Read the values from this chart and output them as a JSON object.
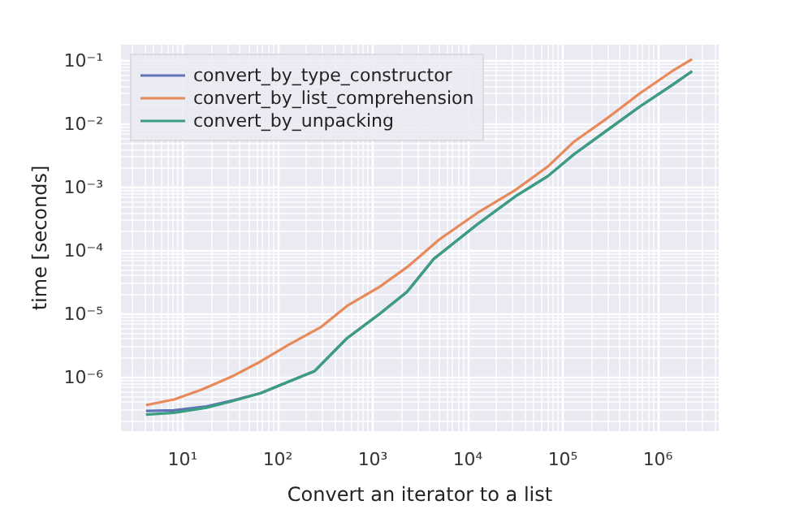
{
  "chart_data": {
    "type": "line",
    "xlabel": "Convert an iterator to a list",
    "ylabel": "time [seconds]",
    "log": "xy",
    "grid": true,
    "legend": "top left",
    "marker": "none",
    "line_style": "solid",
    "xlim": [
      2.24,
      4370000
    ],
    "ylim": [
      1.41e-07,
      0.182
    ],
    "xticks": [
      {
        "value": 10,
        "label": "10¹"
      },
      {
        "value": 100,
        "label": "10²"
      },
      {
        "value": 1000,
        "label": "10³"
      },
      {
        "value": 10000,
        "label": "10⁴"
      },
      {
        "value": 100000,
        "label": "10⁵"
      },
      {
        "value": 1000000,
        "label": "10⁶"
      }
    ],
    "yticks": [
      {
        "value": 1e-06,
        "label": "10⁻⁶"
      },
      {
        "value": 1e-05,
        "label": "10⁻⁵"
      },
      {
        "value": 0.0001,
        "label": "10⁻⁴"
      },
      {
        "value": 0.001,
        "label": "10⁻³"
      },
      {
        "value": 0.01,
        "label": "10⁻²"
      },
      {
        "value": 0.1,
        "label": "10⁻¹"
      }
    ],
    "series": [
      {
        "name": "convert_by_type_constructor",
        "color": "#5f74b8",
        "x": [
          4.1,
          8.1,
          17.8,
          34.7,
          66,
          129,
          245,
          537,
          1175,
          2290,
          4370,
          12600,
          31600,
          69200,
          132000,
          295000,
          646000,
          1410000,
          2290000
        ],
        "values": [
          2.95e-07,
          3e-07,
          3.47e-07,
          4.37e-07,
          5.62e-07,
          8.51e-07,
          1.26e-06,
          4.17e-06,
          1e-05,
          2.24e-05,
          7.41e-05,
          0.000263,
          0.000724,
          0.00151,
          0.00339,
          0.00813,
          0.0191,
          0.0417,
          0.0692
        ]
      },
      {
        "name": "convert_by_list_comprehension",
        "color": "#e8895a",
        "x": [
          4.1,
          8.1,
          15.5,
          34.7,
          66,
          129,
          282,
          537,
          1175,
          2290,
          5010,
          12600,
          31600,
          69200,
          132000,
          295000,
          646000,
          1410000,
          2290000
        ],
        "values": [
          3.63e-07,
          4.47e-07,
          6.31e-07,
          1.07e-06,
          1.78e-06,
          3.24e-06,
          6.17e-06,
          1.35e-05,
          2.69e-05,
          5.5e-05,
          0.000151,
          0.000398,
          0.000912,
          0.00214,
          0.00537,
          0.0126,
          0.0309,
          0.0692,
          0.107
        ]
      },
      {
        "name": "convert_by_unpacking",
        "color": "#3c9e81",
        "x": [
          4.1,
          8.1,
          17.8,
          34.7,
          66,
          129,
          245,
          537,
          1175,
          2290,
          4370,
          12600,
          31600,
          69200,
          132000,
          295000,
          646000,
          1410000,
          2290000
        ],
        "values": [
          2.57e-07,
          2.75e-07,
          3.31e-07,
          4.27e-07,
          5.62e-07,
          8.51e-07,
          1.26e-06,
          4.17e-06,
          1e-05,
          2.24e-05,
          7.41e-05,
          0.000263,
          0.000724,
          0.00151,
          0.00339,
          0.00813,
          0.0191,
          0.0417,
          0.0692
        ]
      }
    ]
  }
}
